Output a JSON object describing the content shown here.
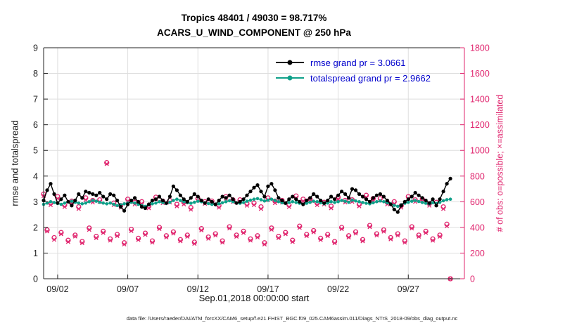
{
  "title": {
    "line1": "Tropics 48401 / 49030 = 98.717%",
    "line2": "ACARS_U_WIND_COMPONENT @ 250 hPa"
  },
  "axes": {
    "left_label": "rmse and totalspread",
    "right_label": "# of obs: o=possible; ×=assimilated",
    "x_label": "Sep.01,2018 00:00:00 start",
    "left_ticks": [
      0,
      1,
      2,
      3,
      4,
      5,
      6,
      7,
      8,
      9
    ],
    "right_ticks": [
      0,
      200,
      400,
      600,
      800,
      1000,
      1200,
      1400,
      1600,
      1800
    ],
    "x_ticks": [
      {
        "day": 1,
        "label": "09/02"
      },
      {
        "day": 6,
        "label": "09/07"
      },
      {
        "day": 11,
        "label": "09/12"
      },
      {
        "day": 16,
        "label": "09/17"
      },
      {
        "day": 21,
        "label": "09/22"
      },
      {
        "day": 26,
        "label": "09/27"
      }
    ],
    "left_lim": [
      0,
      9
    ],
    "right_lim": [
      0,
      1800
    ],
    "x_lim": [
      0,
      30
    ]
  },
  "legend": [
    {
      "label": "rmse grand pr = 3.0661",
      "color": "#000000"
    },
    {
      "label": "totalspread grand pr = 2.9662",
      "color": "#0fa089"
    }
  ],
  "colors": {
    "rmse": "#000000",
    "totalspread": "#0fa089",
    "obs": "#e0256e",
    "legend_text": "#0000cc",
    "grid": "#dedede",
    "axis": "#222222"
  },
  "caption": "data file: /Users/raeder/DAI/ATM_forcXX/CAM6_setup/f.e21.FHIST_BGC.f09_025.CAM6assim.011/Diags_NTrS_2018-09/obs_diag_output.nc",
  "chart_data": {
    "type": "line",
    "x_unit": "days since Sep.01,2018 00:00:00",
    "time": {
      "start_day": 0,
      "step_days": 0.25,
      "count": 117
    },
    "rmse_grand_pr": 3.0661,
    "totalspread_grand_pr": 2.9662,
    "series": [
      {
        "name": "rmse",
        "axis": "left",
        "marker": "filled-circle",
        "values": [
          3.05,
          3.45,
          3.7,
          3.3,
          2.95,
          3.1,
          3.25,
          3.0,
          2.85,
          3.05,
          3.3,
          3.15,
          3.4,
          3.35,
          3.3,
          3.25,
          3.35,
          3.2,
          3.1,
          3.3,
          3.25,
          3.05,
          2.8,
          2.65,
          2.9,
          3.05,
          3.15,
          3.0,
          2.8,
          2.75,
          2.9,
          3.05,
          3.1,
          3.2,
          3.05,
          2.95,
          3.2,
          3.6,
          3.45,
          3.25,
          3.1,
          3.0,
          3.15,
          3.3,
          3.2,
          3.05,
          2.95,
          3.1,
          3.0,
          2.9,
          3.05,
          3.2,
          3.15,
          3.25,
          3.1,
          2.95,
          3.0,
          3.1,
          3.25,
          3.4,
          3.55,
          3.65,
          3.4,
          3.2,
          3.6,
          3.7,
          3.45,
          3.15,
          3.05,
          2.95,
          3.1,
          3.2,
          3.1,
          3.0,
          2.9,
          3.05,
          3.15,
          3.3,
          3.2,
          3.05,
          2.95,
          3.05,
          3.2,
          3.1,
          3.25,
          3.4,
          3.3,
          3.15,
          3.5,
          3.45,
          3.3,
          3.2,
          3.1,
          3.0,
          3.15,
          3.25,
          3.3,
          3.2,
          3.05,
          2.9,
          2.7,
          2.6,
          2.85,
          3.0,
          3.1,
          3.2,
          3.35,
          3.25,
          3.15,
          3.05,
          2.95,
          3.1,
          2.85,
          3.1,
          3.4,
          3.7,
          3.9
        ]
      },
      {
        "name": "totalspread",
        "axis": "left",
        "marker": "filled-circle",
        "values": [
          2.9,
          2.95,
          3.0,
          2.97,
          2.93,
          2.9,
          2.95,
          3.0,
          3.02,
          2.98,
          2.95,
          2.92,
          2.95,
          3.0,
          3.05,
          3.02,
          2.98,
          2.95,
          2.92,
          2.95,
          2.9,
          2.85,
          2.88,
          2.92,
          2.95,
          2.98,
          2.95,
          2.9,
          2.85,
          2.82,
          2.88,
          2.92,
          2.95,
          3.0,
          2.97,
          2.93,
          2.98,
          3.05,
          3.1,
          3.05,
          3.0,
          2.96,
          2.94,
          2.98,
          3.02,
          3.0,
          2.96,
          2.93,
          2.9,
          2.88,
          2.92,
          2.96,
          3.0,
          3.04,
          3.0,
          2.96,
          2.94,
          2.97,
          3.02,
          3.06,
          3.1,
          3.12,
          3.08,
          3.03,
          3.06,
          3.1,
          3.05,
          3.0,
          2.96,
          2.93,
          2.97,
          3.0,
          2.97,
          2.94,
          2.9,
          2.94,
          2.98,
          3.02,
          3.0,
          2.96,
          2.92,
          2.95,
          3.0,
          2.97,
          3.0,
          3.05,
          3.02,
          2.98,
          3.06,
          3.03,
          3.0,
          2.97,
          2.94,
          2.92,
          2.96,
          3.0,
          3.03,
          3.0,
          2.96,
          2.92,
          2.86,
          2.82,
          2.88,
          2.94,
          2.98,
          3.02,
          3.05,
          3.01,
          2.97,
          2.94,
          2.92,
          2.96,
          2.93,
          2.98,
          3.04,
          3.08,
          3.1
        ]
      },
      {
        "name": "possible",
        "axis": "right",
        "marker": "o",
        "values": [
          660,
          380,
          590,
          320,
          640,
          360,
          575,
          300,
          605,
          340,
          560,
          290,
          630,
          395,
          610,
          330,
          615,
          370,
          905,
          310,
          590,
          345,
          570,
          280,
          620,
          385,
          595,
          315,
          600,
          355,
          565,
          295,
          635,
          400,
          605,
          335,
          610,
          365,
          580,
          305,
          595,
          340,
          555,
          285,
          625,
          390,
          600,
          325,
          605,
          350,
          570,
          295,
          640,
          405,
          615,
          340,
          615,
          370,
          585,
          310,
          590,
          335,
          560,
          280,
          630,
          395,
          605,
          330,
          610,
          360,
          575,
          300,
          645,
          410,
          620,
          345,
          620,
          375,
          590,
          315,
          595,
          345,
          565,
          290,
          635,
          400,
          610,
          335,
          615,
          365,
          580,
          305,
          650,
          415,
          625,
          350,
          625,
          380,
          595,
          320,
          600,
          350,
          570,
          295,
          640,
          405,
          615,
          340,
          620,
          370,
          585,
          310,
          595,
          340,
          560,
          425,
          0
        ]
      },
      {
        "name": "assimilated",
        "axis": "right",
        "marker": "x",
        "values": [
          645,
          370,
          575,
          305,
          625,
          348,
          560,
          288,
          590,
          330,
          545,
          278,
          615,
          382,
          595,
          318,
          600,
          358,
          895,
          298,
          575,
          333,
          555,
          268,
          605,
          372,
          580,
          303,
          585,
          343,
          550,
          283,
          620,
          388,
          590,
          323,
          595,
          353,
          565,
          293,
          580,
          328,
          540,
          273,
          610,
          378,
          585,
          313,
          590,
          338,
          555,
          283,
          625,
          393,
          600,
          328,
          600,
          358,
          570,
          298,
          575,
          323,
          545,
          268,
          615,
          383,
          590,
          318,
          595,
          348,
          560,
          288,
          630,
          398,
          605,
          333,
          605,
          363,
          575,
          303,
          580,
          333,
          550,
          278,
          620,
          388,
          595,
          323,
          600,
          353,
          565,
          293,
          635,
          403,
          610,
          338,
          610,
          368,
          580,
          308,
          585,
          338,
          555,
          283,
          625,
          393,
          600,
          328,
          605,
          358,
          570,
          298,
          580,
          328,
          545,
          410,
          0
        ]
      }
    ]
  }
}
